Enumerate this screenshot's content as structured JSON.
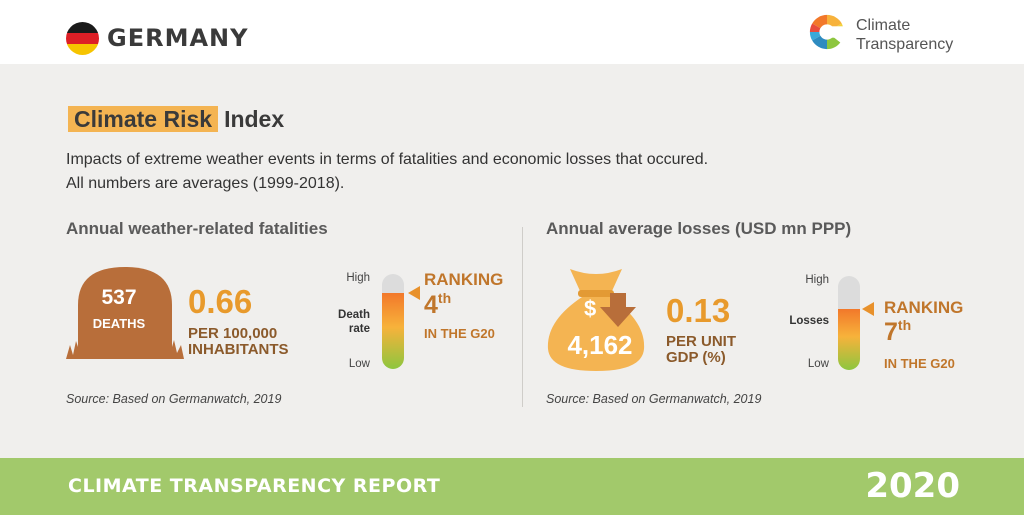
{
  "header": {
    "country": "GERMANY",
    "logo_line1": "Climate",
    "logo_line2": "Transparency",
    "flag_colors": [
      "#1a1a1a",
      "#dd1f26",
      "#f6c400"
    ]
  },
  "title": {
    "highlight": "Climate Risk",
    "rest": "Index"
  },
  "description": {
    "line1": "Impacts of extreme weather events in terms of fatalities and economic losses that occured.",
    "line2": "All numbers are averages (1999-2018)."
  },
  "fatalities": {
    "section_title": "Annual weather-related fatalities",
    "deaths_value": "537",
    "deaths_label": "DEATHS",
    "rate_value": "0.66",
    "rate_label_line1": "PER 100,000",
    "rate_label_line2": "INHABITANTS",
    "scale_high": "High",
    "scale_low": "Low",
    "scale_label_line1": "Death",
    "scale_label_line2": "rate",
    "scale_level": 0.8,
    "ranking_label": "RANKING",
    "ranking_value": "4",
    "ranking_suffix": "th",
    "ranking_context": "IN THE G20",
    "source": "Source: Based on Germanwatch, 2019"
  },
  "losses": {
    "section_title": "Annual average losses (USD mn PPP)",
    "bag_symbol": "$",
    "loss_value": "4,162",
    "gdp_value": "0.13",
    "gdp_label_line1": "PER UNIT",
    "gdp_label_line2": "GDP (%)",
    "scale_high": "High",
    "scale_low": "Low",
    "scale_label": "Losses",
    "scale_level": 0.65,
    "ranking_label": "RANKING",
    "ranking_value": "7",
    "ranking_suffix": "th",
    "ranking_context": "IN THE G20",
    "source": "Source: Based on Germanwatch, 2019"
  },
  "footer": {
    "report": "CLIMATE TRANSPARENCY REPORT",
    "year": "2020"
  },
  "colors": {
    "highlight": "#f4b452",
    "accent_orange": "#e89a2c",
    "accent_brown": "#c0762b",
    "tombstone": "#b86e3a",
    "moneybag": "#f4b452",
    "footer": "#a2c96b"
  }
}
